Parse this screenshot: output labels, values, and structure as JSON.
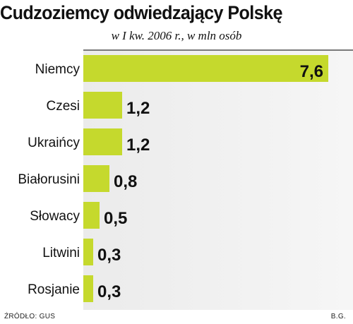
{
  "chart_data": {
    "type": "bar",
    "orientation": "horizontal",
    "title": "Cudzoziemcy odwiedzający Polskę",
    "subtitle": "w I kw. 2006 r., w mln osób",
    "categories": [
      "Niemcy",
      "Czesi",
      "Ukraińcy",
      "Białorusini",
      "Słowacy",
      "Litwini",
      "Rosjanie"
    ],
    "values": [
      7.6,
      1.2,
      1.2,
      0.8,
      0.5,
      0.3,
      0.3
    ],
    "value_labels": [
      "7,6",
      "1,2",
      "1,2",
      "0,8",
      "0,5",
      "0,3",
      "0,3"
    ],
    "xlim": [
      0,
      7.6
    ],
    "bar_color": "#c5d92d",
    "grid": false,
    "legend": "none"
  },
  "footer": {
    "source": "ŹRÓDŁO: GUS",
    "author": "B.G."
  }
}
